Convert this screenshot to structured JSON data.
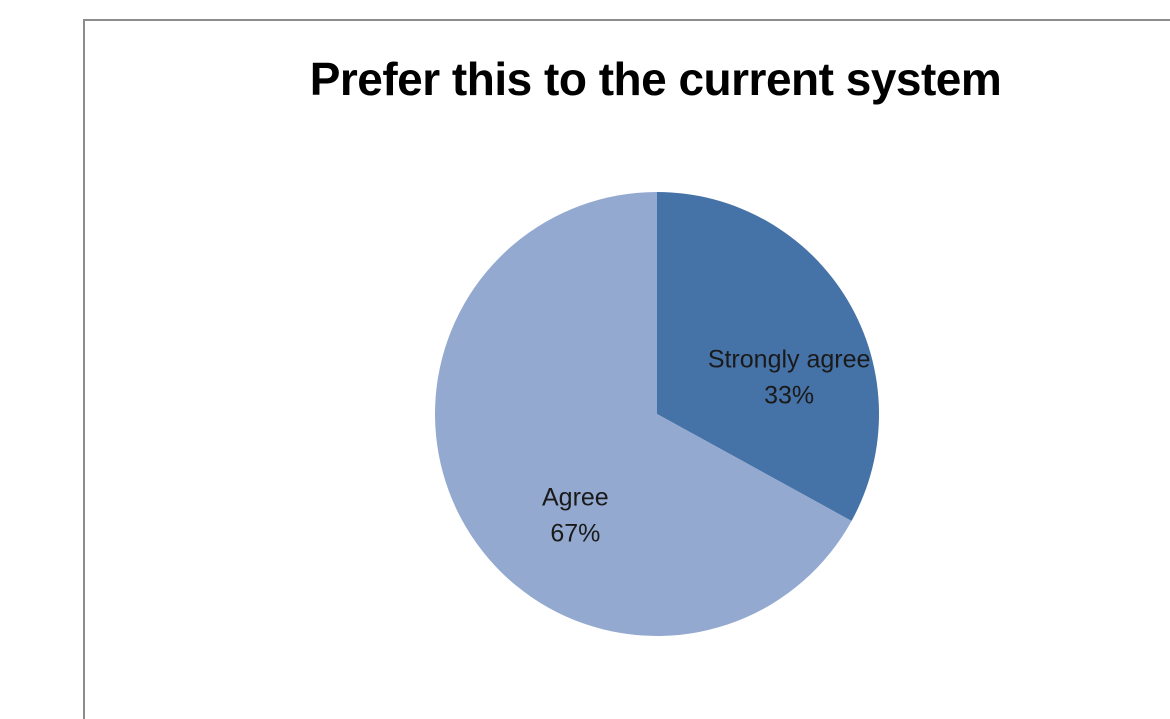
{
  "chart_data": {
    "type": "pie",
    "title": "Prefer this to the current system",
    "slices": [
      {
        "label": "Strongly agree",
        "percent_label": "33%",
        "value": 33,
        "color": "#4572a7"
      },
      {
        "label": "Agree",
        "percent_label": "67%",
        "value": 67,
        "color": "#93a9d0"
      }
    ],
    "start_angle_deg": 0,
    "direction": "clockwise",
    "legend": "none",
    "data_labels": "inside"
  }
}
